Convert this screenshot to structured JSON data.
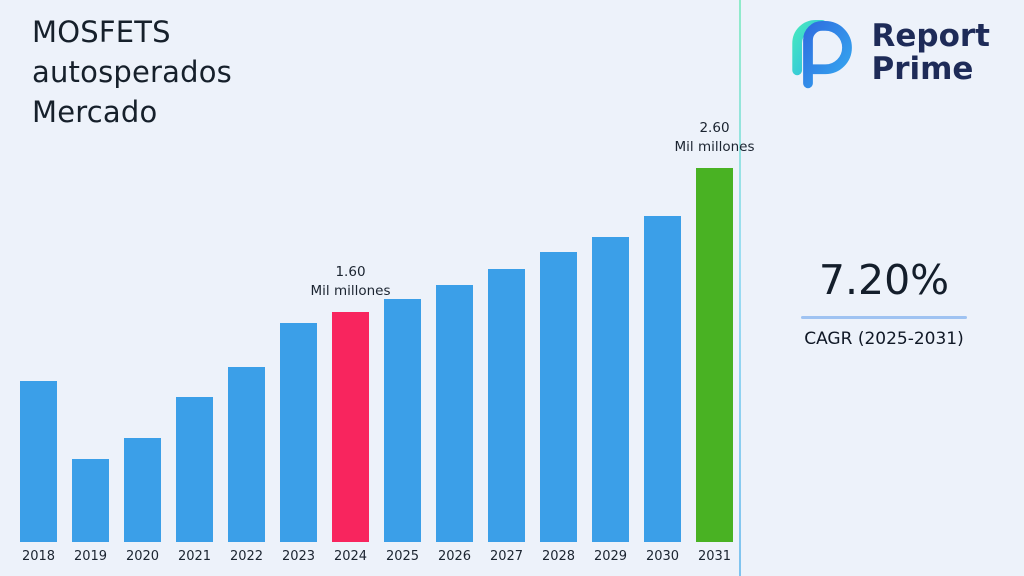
{
  "header": {
    "title": "MOSFETS\nautosperados\nMercado"
  },
  "brand": {
    "line1": "Report",
    "line2": "Prime"
  },
  "kpi": {
    "value": "7.20%",
    "label": "CAGR (2025-2031)"
  },
  "chart_data": {
    "type": "bar",
    "title": "MOSFETS autosperados Mercado",
    "unit": "Mil millones",
    "categories": [
      "2018",
      "2019",
      "2020",
      "2021",
      "2022",
      "2023",
      "2024",
      "2025",
      "2026",
      "2027",
      "2028",
      "2029",
      "2030",
      "2031"
    ],
    "values": [
      1.12,
      0.58,
      0.72,
      1.01,
      1.22,
      1.52,
      1.6,
      1.69,
      1.79,
      1.9,
      2.02,
      2.12,
      2.27,
      2.6
    ],
    "annotations": [
      {
        "category": "2024",
        "lines": "1.60\nMil millones"
      },
      {
        "category": "2031",
        "lines": "2.60\nMil millones"
      }
    ],
    "colors": {
      "bar_default": "#3B9FE8",
      "bar_2024": "#F8255E",
      "bar_2031": "#49B223"
    },
    "xlabel": "",
    "ylabel": "",
    "ylim": [
      0,
      2.8
    ],
    "grid": false,
    "legend": false
  }
}
